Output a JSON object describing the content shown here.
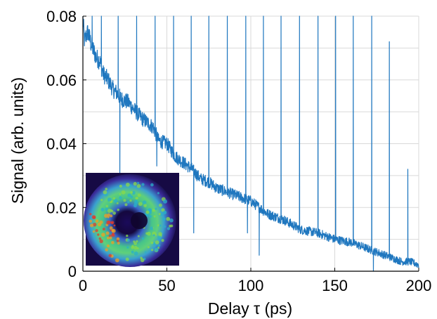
{
  "chart_data": {
    "type": "line",
    "xlabel": "Delay τ (ps)",
    "ylabel": "Signal (arb. units)",
    "xlim": [
      0,
      200
    ],
    "ylim": [
      0,
      0.08
    ],
    "x_ticks": [
      0,
      50,
      100,
      150,
      200
    ],
    "y_ticks": [
      0,
      0.02,
      0.04,
      0.06,
      0.08
    ],
    "x_tick_labels": [
      "0",
      "50",
      "100",
      "150",
      "200"
    ],
    "y_tick_labels": [
      "0",
      "0.02",
      "0.04",
      "0.06",
      "0.08"
    ],
    "grid": true,
    "line_color": "#1f77bf",
    "baseline": {
      "x": [
        0,
        1,
        2,
        3,
        5,
        8,
        10,
        12,
        15,
        18,
        20,
        23,
        27,
        30,
        35,
        40,
        42,
        45,
        50,
        55,
        60,
        65,
        70,
        75,
        80,
        85,
        90,
        95,
        100,
        110,
        120,
        130,
        140,
        150,
        160,
        170,
        175,
        180,
        185,
        190,
        195,
        200
      ],
      "y": [
        0.079,
        0.072,
        0.074,
        0.075,
        0.071,
        0.067,
        0.066,
        0.062,
        0.06,
        0.057,
        0.056,
        0.054,
        0.053,
        0.051,
        0.048,
        0.046,
        0.045,
        0.041,
        0.04,
        0.036,
        0.034,
        0.032,
        0.029,
        0.028,
        0.026,
        0.025,
        0.024,
        0.023,
        0.022,
        0.018,
        0.016,
        0.013,
        0.012,
        0.01,
        0.009,
        0.007,
        0.006,
        0.005,
        0.004,
        0.003,
        0.003,
        0.002
      ]
    },
    "spikes": [
      {
        "x": 5.5,
        "y": 0.08
      },
      {
        "x": 11,
        "y": 0.08
      },
      {
        "x": 21,
        "y": 0.08
      },
      {
        "x": 32,
        "y": 0.08
      },
      {
        "x": 43,
        "y": 0.08
      },
      {
        "x": 54,
        "y": 0.08
      },
      {
        "x": 64.5,
        "y": 0.08
      },
      {
        "x": 75,
        "y": 0.08
      },
      {
        "x": 86,
        "y": 0.08
      },
      {
        "x": 97,
        "y": 0.08
      },
      {
        "x": 107.5,
        "y": 0.08
      },
      {
        "x": 118,
        "y": 0.08
      },
      {
        "x": 129,
        "y": 0.08
      },
      {
        "x": 140,
        "y": 0.08
      },
      {
        "x": 150.5,
        "y": 0.08
      },
      {
        "x": 161,
        "y": 0.08
      },
      {
        "x": 172,
        "y": 0.08
      },
      {
        "x": 182.5,
        "y": 0.072
      },
      {
        "x": 193.5,
        "y": 0.032
      }
    ],
    "dips": [
      {
        "x": 22,
        "y": 0.03
      },
      {
        "x": 44,
        "y": 0.033
      },
      {
        "x": 66,
        "y": 0.012
      },
      {
        "x": 98,
        "y": 0.012
      },
      {
        "x": 105,
        "y": 0.005
      },
      {
        "x": 173,
        "y": 0.0
      }
    ]
  }
}
